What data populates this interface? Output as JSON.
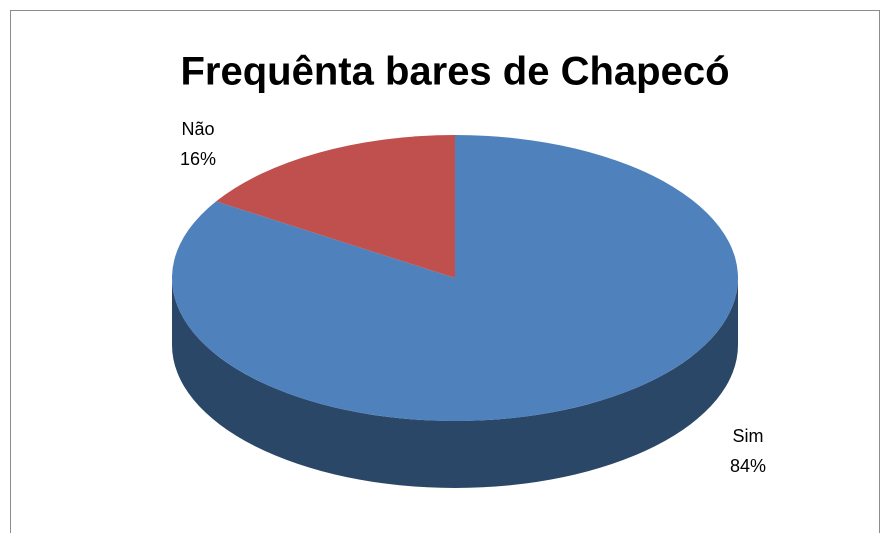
{
  "chart_data": {
    "type": "pie",
    "title": "Frequênta bares de Chapecó",
    "categories": [
      "Sim",
      "Não"
    ],
    "values": [
      84,
      16
    ],
    "value_labels": [
      "84%",
      "16%"
    ],
    "colors": [
      "#4f81bd",
      "#c0504d"
    ]
  }
}
